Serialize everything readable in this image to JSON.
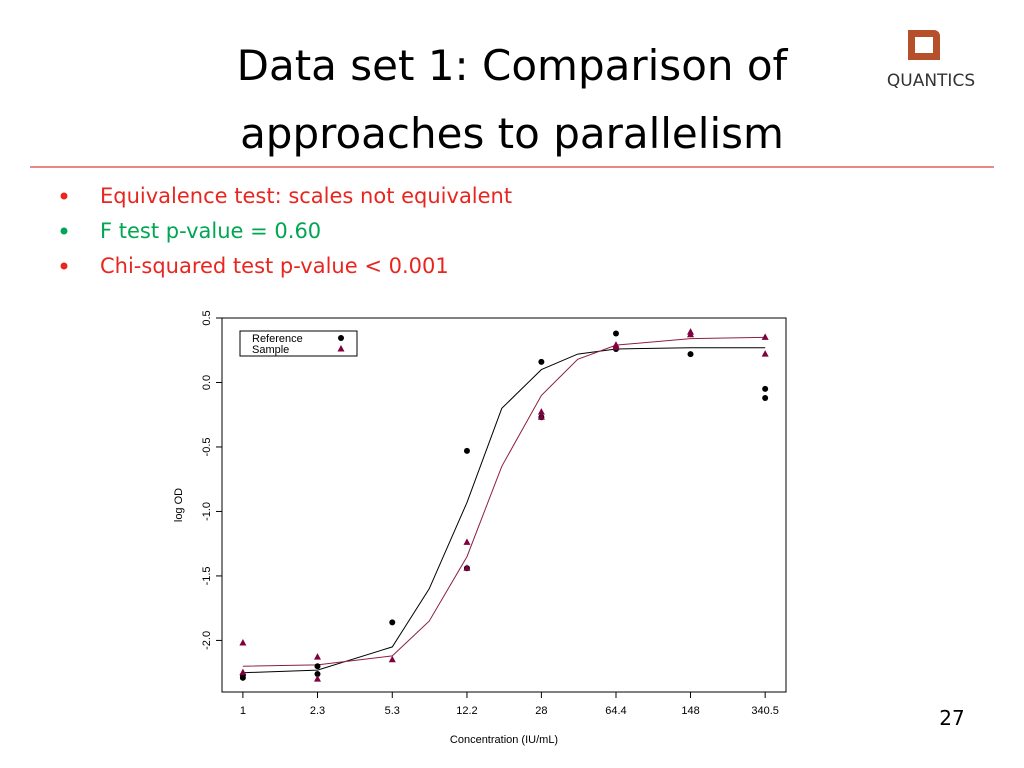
{
  "header": {
    "title_lines": [
      "Data set 1: Comparison of",
      "approaches to parallelism"
    ],
    "logo": "QUANTICS"
  },
  "bullets": [
    {
      "text": "Equivalence test: scales not equivalent",
      "color": "#e8261f"
    },
    {
      "text": "F test p-value = 0.60",
      "color": "#00a651"
    },
    {
      "text": "Chi-squared test p-value < 0.001",
      "color": "#e8261f"
    }
  ],
  "page_number": "27",
  "chart_data": {
    "type": "scatter",
    "x_label": "Concentration (IU/mL)",
    "y_label": "log OD",
    "log_x": true,
    "xlim": [
      0.792,
      429.7
    ],
    "ylim": [
      -2.4,
      0.5
    ],
    "xticks": [
      1,
      2.3,
      5.3,
      12.2,
      28,
      64.4,
      148,
      340.5
    ],
    "yticks": [
      {
        "value": -2,
        "label": "-2.0"
      },
      -1.5,
      {
        "value": -1,
        "label": "-1.0"
      },
      -0.5,
      {
        "value": 0,
        "label": "0.0"
      },
      0.5
    ],
    "legend": "top-left",
    "series": [
      {
        "name": "Reference",
        "color": "#000000",
        "marker": "circle",
        "x": [
          1,
          1,
          2.3,
          2.3,
          5.3,
          12.2,
          12.2,
          28,
          28,
          64.4,
          64.4,
          148,
          340.5,
          340.5
        ],
        "values": [
          -2.27,
          -2.29,
          -2.2,
          -2.26,
          -1.86,
          -0.53,
          -1.44,
          0.16,
          -0.27,
          0.38,
          0.26,
          0.22,
          -0.05,
          -0.12
        ]
      },
      {
        "name": "Sample",
        "color": "#800040",
        "marker": "triangle",
        "x": [
          1,
          1,
          2.3,
          2.3,
          5.3,
          12.2,
          12.2,
          28,
          28,
          64.4,
          64.4,
          148,
          148,
          340.5,
          340.5
        ],
        "values": [
          -2.02,
          -2.25,
          -2.13,
          -2.3,
          -2.15,
          -1.24,
          -1.44,
          -0.23,
          -0.27,
          0.29,
          0.27,
          0.39,
          0.37,
          0.35,
          0.22
        ]
      }
    ],
    "fits": [
      {
        "color": "#000000",
        "x": [
          1,
          2.3,
          5.3,
          8,
          12.2,
          18,
          28,
          42,
          64.4,
          148,
          340.5
        ],
        "values": [
          -2.25,
          -2.23,
          -2.05,
          -1.6,
          -0.93,
          -0.2,
          0.1,
          0.22,
          0.26,
          0.27,
          0.27
        ]
      },
      {
        "color": "#8b2040",
        "x": [
          1,
          2.3,
          5.3,
          8,
          12.2,
          18,
          28,
          42,
          64.4,
          148,
          340.5
        ],
        "values": [
          -2.2,
          -2.19,
          -2.12,
          -1.85,
          -1.35,
          -0.65,
          -0.1,
          0.18,
          0.29,
          0.34,
          0.35
        ]
      }
    ]
  }
}
